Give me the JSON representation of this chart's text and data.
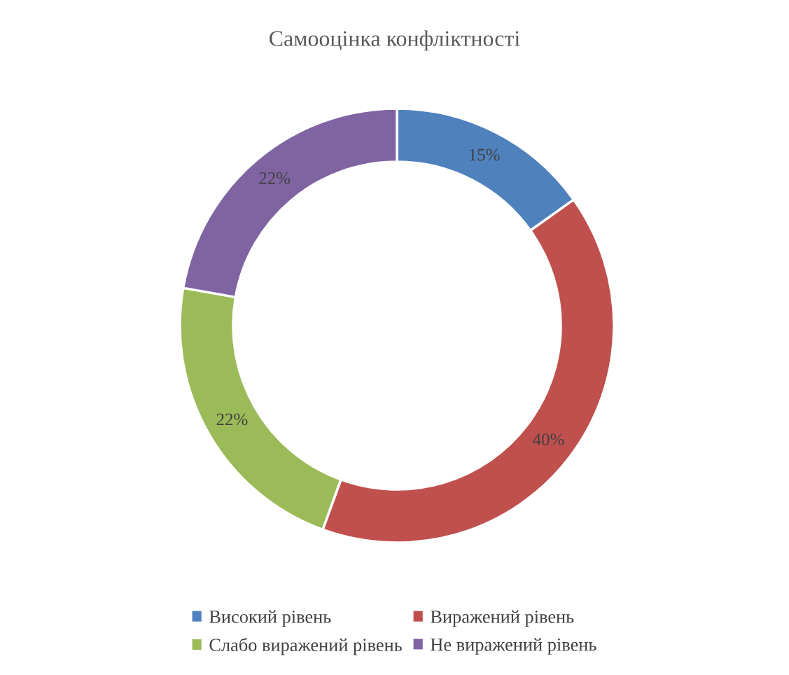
{
  "chart_data": {
    "type": "donut",
    "title": "Самооцінка конфліктності",
    "categories": [
      "Високий рівень",
      "Виражений рівень",
      "Слабо виражений рівень",
      "Не виражений рівень"
    ],
    "values": [
      15,
      40,
      22,
      22
    ],
    "colors": [
      "#4f81bd",
      "#c0504d",
      "#9bbb59",
      "#8064a2"
    ],
    "value_labels": [
      "15%",
      "40%",
      "22%",
      "22%"
    ],
    "legend": "bottom"
  }
}
